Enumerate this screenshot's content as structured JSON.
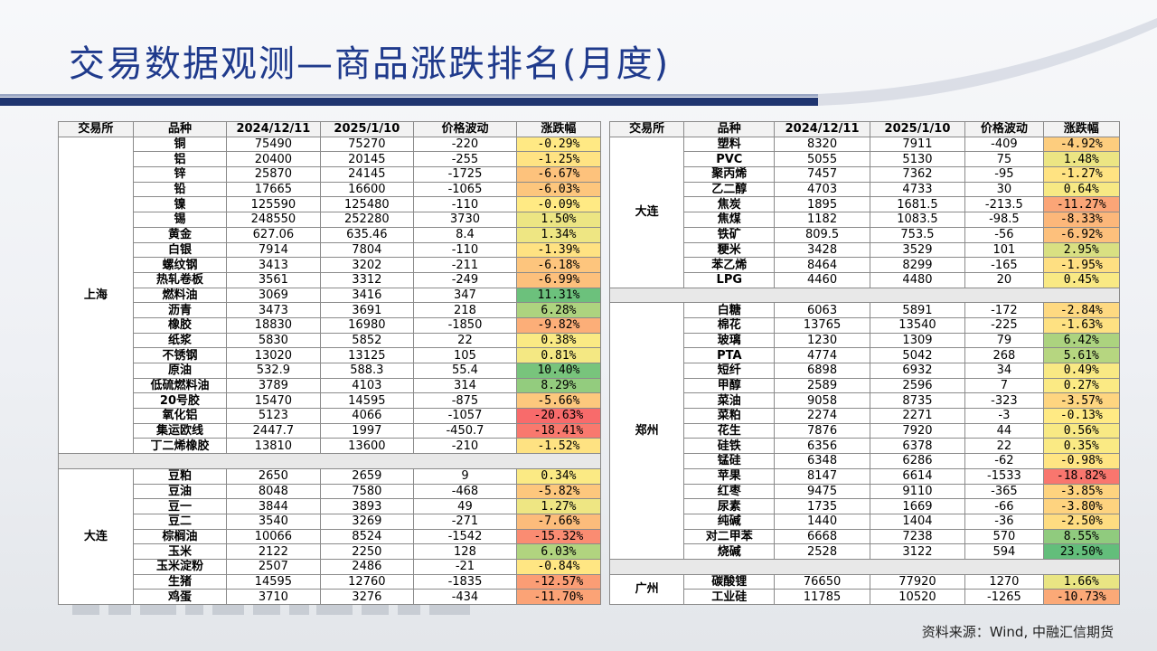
{
  "title": "交易数据观测—商品涨跌排名(月度)",
  "headers": [
    "交易所",
    "品种",
    "2024/12/11",
    "2025/1/10",
    "价格波动",
    "涨跌幅"
  ],
  "source": "资料来源：Wind, 中融汇信期货",
  "left_groups": [
    {
      "exchange": "上海",
      "rows": [
        [
          "铜",
          "75490",
          "75270",
          "-220",
          "-0.29%"
        ],
        [
          "铝",
          "20400",
          "20145",
          "-255",
          "-1.25%"
        ],
        [
          "锌",
          "25870",
          "24145",
          "-1725",
          "-6.67%"
        ],
        [
          "铅",
          "17665",
          "16600",
          "-1065",
          "-6.03%"
        ],
        [
          "镍",
          "125590",
          "125480",
          "-110",
          "-0.09%"
        ],
        [
          "锡",
          "248550",
          "252280",
          "3730",
          "1.50%"
        ],
        [
          "黄金",
          "627.06",
          "635.46",
          "8.4",
          "1.34%"
        ],
        [
          "白银",
          "7914",
          "7804",
          "-110",
          "-1.39%"
        ],
        [
          "螺纹钢",
          "3413",
          "3202",
          "-211",
          "-6.18%"
        ],
        [
          "热轧卷板",
          "3561",
          "3312",
          "-249",
          "-6.99%"
        ],
        [
          "燃料油",
          "3069",
          "3416",
          "347",
          "11.31%"
        ],
        [
          "沥青",
          "3473",
          "3691",
          "218",
          "6.28%"
        ],
        [
          "橡胶",
          "18830",
          "16980",
          "-1850",
          "-9.82%"
        ],
        [
          "纸浆",
          "5830",
          "5852",
          "22",
          "0.38%"
        ],
        [
          "不锈钢",
          "13020",
          "13125",
          "105",
          "0.81%"
        ],
        [
          "原油",
          "532.9",
          "588.3",
          "55.4",
          "10.40%"
        ],
        [
          "低硫燃料油",
          "3789",
          "4103",
          "314",
          "8.29%"
        ],
        [
          "20号胶",
          "15470",
          "14595",
          "-875",
          "-5.66%"
        ],
        [
          "氧化铝",
          "5123",
          "4066",
          "-1057",
          "-20.63%"
        ],
        [
          "集运欧线",
          "2447.7",
          "1997",
          "-450.7",
          "-18.41%"
        ],
        [
          "丁二烯橡胶",
          "13810",
          "13600",
          "-210",
          "-1.52%"
        ]
      ]
    },
    {
      "gap": true
    },
    {
      "exchange": "大连",
      "rows": [
        [
          "豆粕",
          "2650",
          "2659",
          "9",
          "0.34%"
        ],
        [
          "豆油",
          "8048",
          "7580",
          "-468",
          "-5.82%"
        ],
        [
          "豆一",
          "3844",
          "3893",
          "49",
          "1.27%"
        ],
        [
          "豆二",
          "3540",
          "3269",
          "-271",
          "-7.66%"
        ],
        [
          "棕榈油",
          "10066",
          "8524",
          "-1542",
          "-15.32%"
        ],
        [
          "玉米",
          "2122",
          "2250",
          "128",
          "6.03%"
        ],
        [
          "玉米淀粉",
          "2507",
          "2486",
          "-21",
          "-0.84%"
        ],
        [
          "生猪",
          "14595",
          "12760",
          "-1835",
          "-12.57%"
        ],
        [
          "鸡蛋",
          "3710",
          "3276",
          "-434",
          "-11.70%"
        ]
      ]
    }
  ],
  "right_groups": [
    {
      "exchange": "大连",
      "rows": [
        [
          "塑料",
          "8320",
          "7911",
          "-409",
          "-4.92%"
        ],
        [
          "PVC",
          "5055",
          "5130",
          "75",
          "1.48%"
        ],
        [
          "聚丙烯",
          "7457",
          "7362",
          "-95",
          "-1.27%"
        ],
        [
          "乙二醇",
          "4703",
          "4733",
          "30",
          "0.64%"
        ],
        [
          "焦炭",
          "1895",
          "1681.5",
          "-213.5",
          "-11.27%"
        ],
        [
          "焦煤",
          "1182",
          "1083.5",
          "-98.5",
          "-8.33%"
        ],
        [
          "铁矿",
          "809.5",
          "753.5",
          "-56",
          "-6.92%"
        ],
        [
          "粳米",
          "3428",
          "3529",
          "101",
          "2.95%"
        ],
        [
          "苯乙烯",
          "8464",
          "8299",
          "-165",
          "-1.95%"
        ],
        [
          "LPG",
          "4460",
          "4480",
          "20",
          "0.45%"
        ]
      ]
    },
    {
      "gap": true
    },
    {
      "exchange": "郑州",
      "rows": [
        [
          "白糖",
          "6063",
          "5891",
          "-172",
          "-2.84%"
        ],
        [
          "棉花",
          "13765",
          "13540",
          "-225",
          "-1.63%"
        ],
        [
          "玻璃",
          "1230",
          "1309",
          "79",
          "6.42%"
        ],
        [
          "PTA",
          "4774",
          "5042",
          "268",
          "5.61%"
        ],
        [
          "短纤",
          "6898",
          "6932",
          "34",
          "0.49%"
        ],
        [
          "甲醇",
          "2589",
          "2596",
          "7",
          "0.27%"
        ],
        [
          "菜油",
          "9058",
          "8735",
          "-323",
          "-3.57%"
        ],
        [
          "菜粕",
          "2274",
          "2271",
          "-3",
          "-0.13%"
        ],
        [
          "花生",
          "7876",
          "7920",
          "44",
          "0.56%"
        ],
        [
          "硅铁",
          "6356",
          "6378",
          "22",
          "0.35%"
        ],
        [
          "锰硅",
          "6348",
          "6286",
          "-62",
          "-0.98%"
        ],
        [
          "苹果",
          "8147",
          "6614",
          "-1533",
          "-18.82%"
        ],
        [
          "红枣",
          "9475",
          "9110",
          "-365",
          "-3.85%"
        ],
        [
          "尿素",
          "1735",
          "1669",
          "-66",
          "-3.80%"
        ],
        [
          "纯碱",
          "1440",
          "1404",
          "-36",
          "-2.50%"
        ],
        [
          "对二甲苯",
          "6668",
          "7238",
          "570",
          "8.55%"
        ],
        [
          "烧碱",
          "2528",
          "3122",
          "594",
          "23.50%"
        ]
      ]
    },
    {
      "gap": true
    },
    {
      "exchange": "广州",
      "rows": [
        [
          "碳酸锂",
          "76650",
          "77920",
          "1270",
          "1.66%"
        ],
        [
          "工业硅",
          "11785",
          "10520",
          "-1265",
          "-10.73%"
        ]
      ]
    }
  ]
}
